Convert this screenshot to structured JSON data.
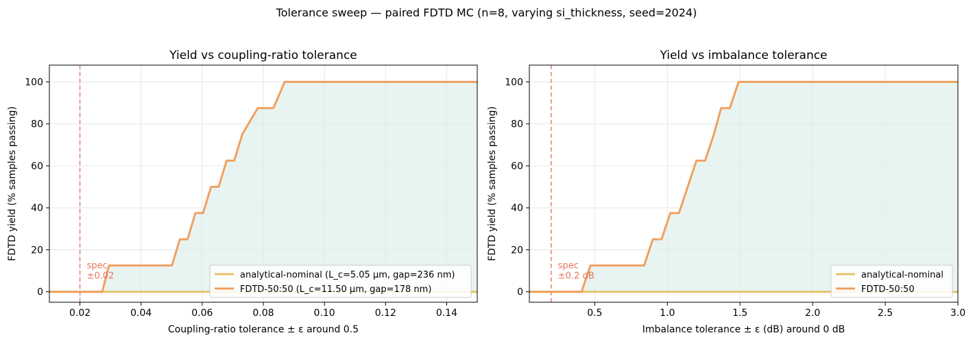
{
  "suptitle": "Tolerance sweep — paired FDTD MC (n=8, varying si_thickness, seed=2024)",
  "colors": {
    "analytical": "#e8c16a",
    "fdtd": "#f0a060",
    "fill": "#dbeee9",
    "spec": "#e8755a",
    "grid": "#e0e0e0"
  },
  "chart_data": [
    {
      "type": "line",
      "title": "Yield vs coupling-ratio tolerance",
      "xlabel": "Coupling-ratio tolerance ± ε around 0.5",
      "ylabel": "FDTD yield  (% samples passing)",
      "xlim": [
        0.01,
        0.15
      ],
      "ylim": [
        -5,
        108
      ],
      "xticks": [
        0.02,
        0.04,
        0.06,
        0.08,
        0.1,
        0.12,
        0.14
      ],
      "xtick_labels": [
        "0.02",
        "0.04",
        "0.06",
        "0.08",
        "0.10",
        "0.12",
        "0.14"
      ],
      "yticks": [
        0,
        20,
        40,
        60,
        80,
        100
      ],
      "ytick_labels": [
        "0",
        "20",
        "40",
        "60",
        "80",
        "100"
      ],
      "grid": true,
      "legend_position": "lower-right",
      "spec": {
        "x": 0.02,
        "label_lines": [
          "spec",
          "±0.02"
        ]
      },
      "series": [
        {
          "name": "analytical-nominal (L_c=5.05 µm, gap=236 nm)",
          "color_key": "analytical",
          "x": [
            0.01,
            0.15
          ],
          "y": [
            0,
            0
          ]
        },
        {
          "name": "FDTD-50:50 (L_c=11.50 µm, gap=178 nm)",
          "color_key": "fdtd",
          "fill": true,
          "x": [
            0.01,
            0.0273,
            0.0295,
            0.0501,
            0.0527,
            0.0552,
            0.0578,
            0.0603,
            0.0629,
            0.0654,
            0.068,
            0.0705,
            0.0731,
            0.0782,
            0.0833,
            0.087,
            0.15
          ],
          "y": [
            0,
            0,
            12.5,
            12.5,
            25,
            25,
            37.5,
            37.5,
            50,
            50,
            62.5,
            62.5,
            75,
            87.5,
            87.5,
            100,
            100
          ]
        }
      ]
    },
    {
      "type": "line",
      "title": "Yield vs imbalance tolerance",
      "xlabel": "Imbalance tolerance ± ε (dB) around 0 dB",
      "ylabel": "FDTD yield  (% samples passing)",
      "xlim": [
        0.05,
        3.0
      ],
      "ylim": [
        -5,
        108
      ],
      "xticks": [
        0.5,
        1.0,
        1.5,
        2.0,
        2.5,
        3.0
      ],
      "xtick_labels": [
        "0.5",
        "1.0",
        "1.5",
        "2.0",
        "2.5",
        "3.0"
      ],
      "yticks": [
        0,
        20,
        40,
        60,
        80,
        100
      ],
      "ytick_labels": [
        "0",
        "20",
        "40",
        "60",
        "80",
        "100"
      ],
      "grid": true,
      "legend_position": "lower-right",
      "spec": {
        "x": 0.2,
        "label_lines": [
          "spec",
          "±0.2 dB"
        ]
      },
      "series": [
        {
          "name": "analytical-nominal",
          "color_key": "analytical",
          "x": [
            0.05,
            3.0
          ],
          "y": [
            0,
            0
          ]
        },
        {
          "name": "FDTD-50:50",
          "color_key": "fdtd",
          "fill": true,
          "x": [
            0.05,
            0.41,
            0.47,
            0.84,
            0.9,
            0.96,
            1.02,
            1.08,
            1.14,
            1.2,
            1.26,
            1.32,
            1.37,
            1.43,
            1.49,
            3.0
          ],
          "y": [
            0,
            0,
            12.5,
            12.5,
            25,
            25,
            37.5,
            37.5,
            50,
            62.5,
            62.5,
            75,
            87.5,
            87.5,
            100,
            100
          ]
        }
      ]
    }
  ]
}
